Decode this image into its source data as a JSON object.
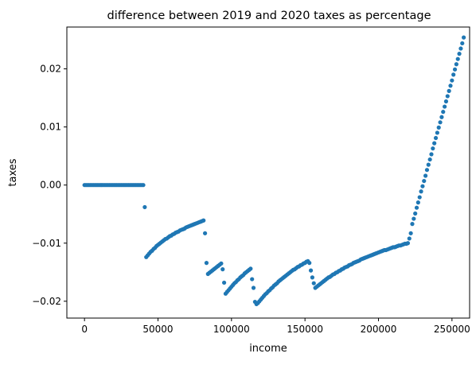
{
  "chart_data": {
    "type": "scatter",
    "title": "difference between 2019 and 2020 taxes as percentage",
    "xlabel": "income",
    "ylabel": "taxes",
    "xlim": [
      -12000,
      262000
    ],
    "ylim": [
      -0.0229,
      0.0272
    ],
    "xticks": [
      0,
      50000,
      100000,
      150000,
      200000,
      250000
    ],
    "xtick_labels": [
      "0",
      "50000",
      "100000",
      "150000",
      "200000",
      "250000"
    ],
    "yticks": [
      -0.02,
      -0.01,
      0.0,
      0.01,
      0.02
    ],
    "ytick_labels": [
      "−0.02",
      "−0.01",
      "0.00",
      "0.01",
      "0.02"
    ],
    "grid": false,
    "marker_color": "#1f77b4",
    "series": [
      {
        "points": [
          [
            0,
            0
          ],
          [
            1000,
            0
          ],
          [
            2000,
            0
          ],
          [
            3000,
            0
          ],
          [
            4000,
            0
          ],
          [
            5000,
            0
          ],
          [
            6000,
            0
          ],
          [
            7000,
            0
          ],
          [
            8000,
            0
          ],
          [
            9000,
            0
          ],
          [
            10000,
            0
          ],
          [
            11000,
            0
          ],
          [
            12000,
            0
          ],
          [
            13000,
            0
          ],
          [
            14000,
            0
          ],
          [
            15000,
            0
          ],
          [
            16000,
            0
          ],
          [
            17000,
            0
          ],
          [
            18000,
            0
          ],
          [
            19000,
            0
          ],
          [
            20000,
            0
          ],
          [
            21000,
            0
          ],
          [
            22000,
            0
          ],
          [
            23000,
            0
          ],
          [
            24000,
            0
          ],
          [
            25000,
            0
          ],
          [
            26000,
            0
          ],
          [
            27000,
            0
          ],
          [
            28000,
            0
          ],
          [
            29000,
            0
          ],
          [
            30000,
            0
          ],
          [
            31000,
            0
          ],
          [
            32000,
            0
          ],
          [
            33000,
            0
          ],
          [
            34000,
            0
          ],
          [
            35000,
            0
          ],
          [
            36000,
            0
          ],
          [
            37000,
            0
          ],
          [
            38000,
            0
          ],
          [
            39000,
            0
          ],
          [
            40000,
            0
          ],
          [
            41000,
            -0.0038
          ],
          [
            42000,
            -0.0124
          ],
          [
            43000,
            -0.0121
          ],
          [
            44000,
            -0.0118
          ],
          [
            45000,
            -0.0115
          ],
          [
            46000,
            -0.0113
          ],
          [
            47000,
            -0.011
          ],
          [
            48000,
            -0.0108
          ],
          [
            49000,
            -0.0105
          ],
          [
            50000,
            -0.0103
          ],
          [
            51000,
            -0.0101
          ],
          [
            52000,
            -0.0099
          ],
          [
            53000,
            -0.0097
          ],
          [
            54000,
            -0.0095
          ],
          [
            55000,
            -0.0093
          ],
          [
            56000,
            -0.0092
          ],
          [
            57000,
            -0.009
          ],
          [
            58000,
            -0.0088
          ],
          [
            59000,
            -0.0087
          ],
          [
            60000,
            -0.0085
          ],
          [
            61000,
            -0.0084
          ],
          [
            62000,
            -0.0082
          ],
          [
            63000,
            -0.0081
          ],
          [
            64000,
            -0.008
          ],
          [
            65000,
            -0.0078
          ],
          [
            66000,
            -0.0077
          ],
          [
            67000,
            -0.0076
          ],
          [
            68000,
            -0.0075
          ],
          [
            69000,
            -0.0073
          ],
          [
            70000,
            -0.0072
          ],
          [
            71000,
            -0.0071
          ],
          [
            72000,
            -0.007
          ],
          [
            73000,
            -0.0069
          ],
          [
            74000,
            -0.0068
          ],
          [
            75000,
            -0.0067
          ],
          [
            76000,
            -0.0066
          ],
          [
            77000,
            -0.0065
          ],
          [
            78000,
            -0.0064
          ],
          [
            79000,
            -0.0063
          ],
          [
            80000,
            -0.0062
          ],
          [
            81000,
            -0.0061
          ],
          [
            82000,
            -0.0083
          ],
          [
            83000,
            -0.0134
          ],
          [
            84000,
            -0.0153
          ],
          [
            85000,
            -0.0151
          ],
          [
            86000,
            -0.0149
          ],
          [
            87000,
            -0.0147
          ],
          [
            88000,
            -0.0145
          ],
          [
            89000,
            -0.0143
          ],
          [
            90000,
            -0.0141
          ],
          [
            91000,
            -0.0139
          ],
          [
            92000,
            -0.0137
          ],
          [
            93000,
            -0.0135
          ],
          [
            94000,
            -0.0145
          ],
          [
            95000,
            -0.0168
          ],
          [
            96000,
            -0.0187
          ],
          [
            97000,
            -0.0184
          ],
          [
            98000,
            -0.0181
          ],
          [
            99000,
            -0.0178
          ],
          [
            100000,
            -0.0175
          ],
          [
            101000,
            -0.0172
          ],
          [
            102000,
            -0.0169
          ],
          [
            103000,
            -0.0167
          ],
          [
            104000,
            -0.0164
          ],
          [
            105000,
            -0.0162
          ],
          [
            106000,
            -0.0159
          ],
          [
            107000,
            -0.0157
          ],
          [
            108000,
            -0.0155
          ],
          [
            109000,
            -0.0152
          ],
          [
            110000,
            -0.015
          ],
          [
            111000,
            -0.0148
          ],
          [
            112000,
            -0.0146
          ],
          [
            113000,
            -0.0144
          ],
          [
            114000,
            -0.0162
          ],
          [
            115000,
            -0.0177
          ],
          [
            116000,
            -0.0201
          ],
          [
            117000,
            -0.0205
          ],
          [
            118000,
            -0.0203
          ],
          [
            119000,
            -0.02
          ],
          [
            120000,
            -0.0197
          ],
          [
            121000,
            -0.0194
          ],
          [
            122000,
            -0.0191
          ],
          [
            123000,
            -0.0188
          ],
          [
            124000,
            -0.0186
          ],
          [
            125000,
            -0.0183
          ],
          [
            126000,
            -0.0181
          ],
          [
            127000,
            -0.0178
          ],
          [
            128000,
            -0.0176
          ],
          [
            129000,
            -0.0173
          ],
          [
            130000,
            -0.0171
          ],
          [
            131000,
            -0.0169
          ],
          [
            132000,
            -0.0166
          ],
          [
            133000,
            -0.0164
          ],
          [
            134000,
            -0.0162
          ],
          [
            135000,
            -0.016
          ],
          [
            136000,
            -0.0158
          ],
          [
            137000,
            -0.0156
          ],
          [
            138000,
            -0.0154
          ],
          [
            139000,
            -0.0152
          ],
          [
            140000,
            -0.015
          ],
          [
            141000,
            -0.0148
          ],
          [
            142000,
            -0.0146
          ],
          [
            143000,
            -0.0145
          ],
          [
            144000,
            -0.0143
          ],
          [
            145000,
            -0.0141
          ],
          [
            146000,
            -0.014
          ],
          [
            147000,
            -0.0138
          ],
          [
            148000,
            -0.0137
          ],
          [
            149000,
            -0.0135
          ],
          [
            150000,
            -0.0134
          ],
          [
            151000,
            -0.0132
          ],
          [
            152000,
            -0.0131
          ],
          [
            153000,
            -0.0134
          ],
          [
            154000,
            -0.0147
          ],
          [
            155000,
            -0.0159
          ],
          [
            156000,
            -0.0169
          ],
          [
            157000,
            -0.0177
          ],
          [
            158000,
            -0.0175
          ],
          [
            159000,
            -0.0173
          ],
          [
            160000,
            -0.0171
          ],
          [
            161000,
            -0.0169
          ],
          [
            162000,
            -0.0167
          ],
          [
            163000,
            -0.0165
          ],
          [
            164000,
            -0.0163
          ],
          [
            165000,
            -0.0161
          ],
          [
            166000,
            -0.0159
          ],
          [
            167000,
            -0.0158
          ],
          [
            168000,
            -0.0156
          ],
          [
            169000,
            -0.0154
          ],
          [
            170000,
            -0.0153
          ],
          [
            171000,
            -0.0151
          ],
          [
            172000,
            -0.015
          ],
          [
            173000,
            -0.0148
          ],
          [
            174000,
            -0.0147
          ],
          [
            175000,
            -0.0145
          ],
          [
            176000,
            -0.0144
          ],
          [
            177000,
            -0.0142
          ],
          [
            178000,
            -0.0141
          ],
          [
            179000,
            -0.014
          ],
          [
            180000,
            -0.0138
          ],
          [
            181000,
            -0.0137
          ],
          [
            182000,
            -0.0136
          ],
          [
            183000,
            -0.0134
          ],
          [
            184000,
            -0.0133
          ],
          [
            185000,
            -0.0132
          ],
          [
            186000,
            -0.0131
          ],
          [
            187000,
            -0.013
          ],
          [
            188000,
            -0.0128
          ],
          [
            189000,
            -0.0127
          ],
          [
            190000,
            -0.0126
          ],
          [
            191000,
            -0.0125
          ],
          [
            192000,
            -0.0124
          ],
          [
            193000,
            -0.0123
          ],
          [
            194000,
            -0.0122
          ],
          [
            195000,
            -0.0121
          ],
          [
            196000,
            -0.012
          ],
          [
            197000,
            -0.0119
          ],
          [
            198000,
            -0.0118
          ],
          [
            199000,
            -0.0117
          ],
          [
            200000,
            -0.0116
          ],
          [
            201000,
            -0.0115
          ],
          [
            202000,
            -0.0114
          ],
          [
            203000,
            -0.0113
          ],
          [
            204000,
            -0.0112
          ],
          [
            205000,
            -0.0112
          ],
          [
            206000,
            -0.0111
          ],
          [
            207000,
            -0.011
          ],
          [
            208000,
            -0.0109
          ],
          [
            209000,
            -0.0108
          ],
          [
            210000,
            -0.0107
          ],
          [
            211000,
            -0.0107
          ],
          [
            212000,
            -0.0106
          ],
          [
            213000,
            -0.0105
          ],
          [
            214000,
            -0.0104
          ],
          [
            215000,
            -0.0104
          ],
          [
            216000,
            -0.0103
          ],
          [
            217000,
            -0.0102
          ],
          [
            218000,
            -0.0101
          ],
          [
            219000,
            -0.0101
          ],
          [
            220000,
            -0.01
          ],
          [
            221000,
            -0.0092
          ],
          [
            222000,
            -0.0083
          ],
          [
            223000,
            -0.0067
          ],
          [
            224000,
            -0.0058
          ],
          [
            225000,
            -0.0049
          ],
          [
            226000,
            -0.0039
          ],
          [
            227000,
            -0.003
          ],
          [
            228000,
            -0.0021
          ],
          [
            229000,
            -0.0011
          ],
          [
            230000,
            -0.0002
          ],
          [
            231000,
            0.0007
          ],
          [
            232000,
            0.0016
          ],
          [
            233000,
            0.0026
          ],
          [
            234000,
            0.0035
          ],
          [
            235000,
            0.0044
          ],
          [
            236000,
            0.0053
          ],
          [
            237000,
            0.0063
          ],
          [
            238000,
            0.0072
          ],
          [
            239000,
            0.0081
          ],
          [
            240000,
            0.009
          ],
          [
            241000,
            0.0099
          ],
          [
            242000,
            0.0108
          ],
          [
            243000,
            0.0117
          ],
          [
            244000,
            0.0126
          ],
          [
            245000,
            0.0135
          ],
          [
            246000,
            0.0144
          ],
          [
            247000,
            0.0153
          ],
          [
            248000,
            0.0162
          ],
          [
            249000,
            0.0171
          ],
          [
            250000,
            0.018
          ],
          [
            251000,
            0.019
          ],
          [
            252000,
            0.0199
          ],
          [
            253000,
            0.0208
          ],
          [
            254000,
            0.0217
          ],
          [
            255000,
            0.0226
          ],
          [
            256000,
            0.0235
          ],
          [
            257000,
            0.0244
          ],
          [
            258000,
            0.0254
          ]
        ]
      }
    ]
  }
}
